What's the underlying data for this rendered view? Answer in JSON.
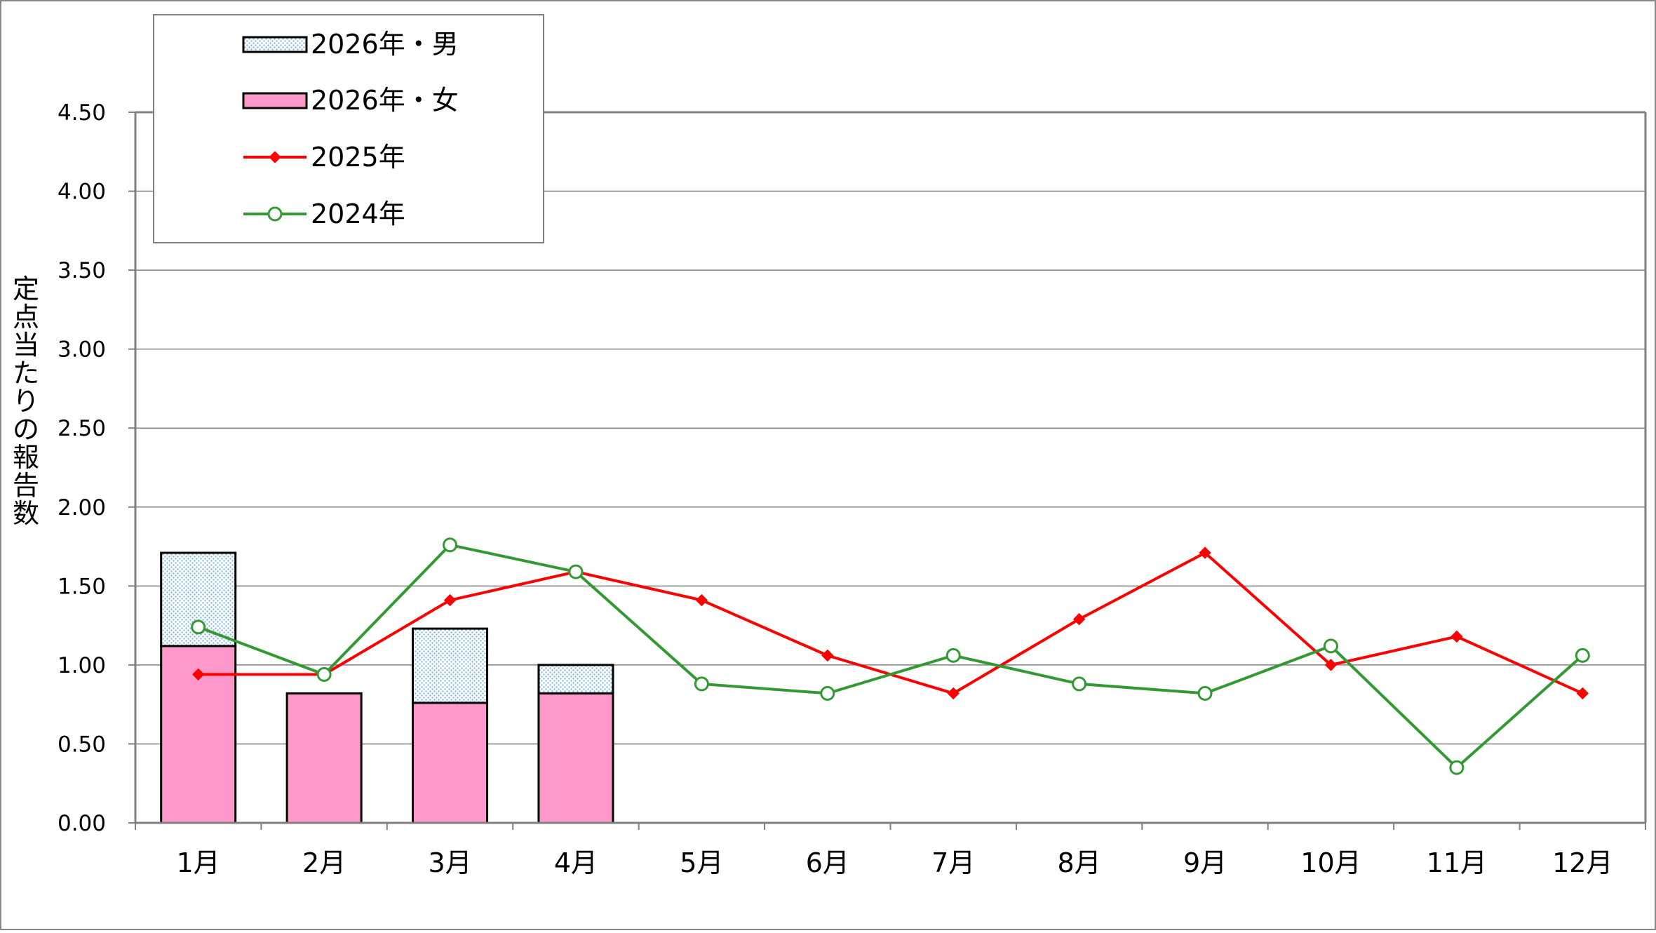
{
  "chart_data": {
    "type": "bar",
    "title": "",
    "xlabel": "",
    "ylabel": "定点当たりの報告数",
    "ylim": [
      0,
      4.5
    ],
    "yticks": [
      "0.00",
      "0.50",
      "1.00",
      "1.50",
      "2.00",
      "2.50",
      "3.00",
      "3.50",
      "4.00",
      "4.50"
    ],
    "ytick_values": [
      0,
      0.5,
      1.0,
      1.5,
      2.0,
      2.5,
      3.0,
      3.5,
      4.0,
      4.5
    ],
    "categories": [
      "1月",
      "2月",
      "3月",
      "4月",
      "5月",
      "6月",
      "7月",
      "8月",
      "9月",
      "10月",
      "11月",
      "12月"
    ],
    "grid": true,
    "legend_position": "top-left",
    "series": [
      {
        "name": "2026年・女",
        "kind": "stacked-bar",
        "color": "#ff99cc",
        "values": [
          1.12,
          0.82,
          0.76,
          0.82,
          null,
          null,
          null,
          null,
          null,
          null,
          null,
          null
        ]
      },
      {
        "name": "2026年・男",
        "kind": "stacked-bar",
        "color": "#cfe3f5",
        "values": [
          0.59,
          0,
          0.47,
          0.18,
          null,
          null,
          null,
          null,
          null,
          null,
          null,
          null
        ]
      },
      {
        "name": "2025年",
        "kind": "line",
        "marker": "diamond",
        "color": "#ff0000",
        "values": [
          0.94,
          0.94,
          1.41,
          1.59,
          1.41,
          1.06,
          0.82,
          1.29,
          1.71,
          1.0,
          1.18,
          0.82
        ]
      },
      {
        "name": "2024年",
        "kind": "line",
        "marker": "circle",
        "color": "#339933",
        "values": [
          1.24,
          0.94,
          1.76,
          1.59,
          0.88,
          0.82,
          1.06,
          0.88,
          0.82,
          1.12,
          0.35,
          1.06
        ]
      }
    ],
    "legend_order": [
      "2026年・男",
      "2026年・女",
      "2025年",
      "2024年"
    ]
  }
}
